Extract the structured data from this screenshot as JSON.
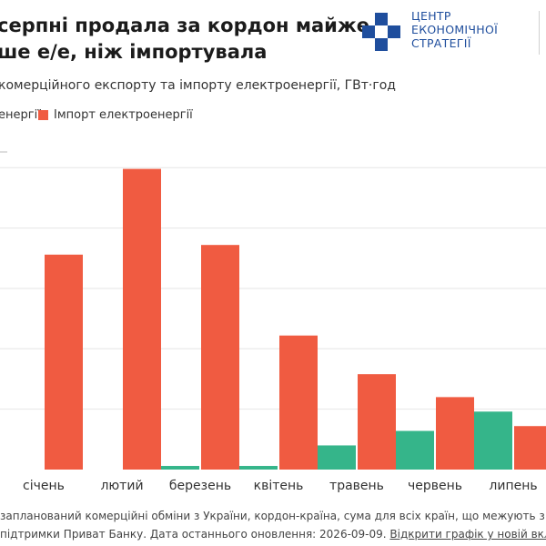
{
  "header": {
    "title_line1": "серпні продала за кордон майже",
    "title_line2": "ше е/е, ніж імпортувала",
    "subtitle": "комерційного експорту та імпорту електроенергії, ГВт·год"
  },
  "logo": {
    "line1": "ЦЕНТР",
    "line2": "ЕКОНОМІЧНОЇ",
    "line3": "СТРАТЕГІЇ",
    "color": "#1f4e9d"
  },
  "legend": {
    "export_label": "енергії",
    "import_label": "Імпорт електроенергії"
  },
  "colors": {
    "export": "#35b58a",
    "import": "#f05b41",
    "grid": "#e6e6e6"
  },
  "chart_data": {
    "type": "bar",
    "categories": [
      "січень",
      "лютий",
      "березень",
      "квітень",
      "травень",
      "червень",
      "липень"
    ],
    "series": [
      {
        "name": "енергії",
        "values": [
          0,
          0,
          3,
          3,
          20,
          32,
          48
        ]
      },
      {
        "name": "Імпорт електроенергії",
        "values": [
          178,
          249,
          186,
          111,
          79,
          60,
          36
        ]
      }
    ],
    "ylim": [
      0,
      260
    ],
    "grid": true,
    "legend_position": "top-left"
  },
  "footer": {
    "line1": "запланований комерційні обміни з України, кордон-країна, сума для всіх країн, що межують з Україною",
    "line2_text": "підтримки Приват Банку. Дата останнього оновлення: 2026-09-09.",
    "link_text": "Відкрити графік у новій вкладці"
  }
}
